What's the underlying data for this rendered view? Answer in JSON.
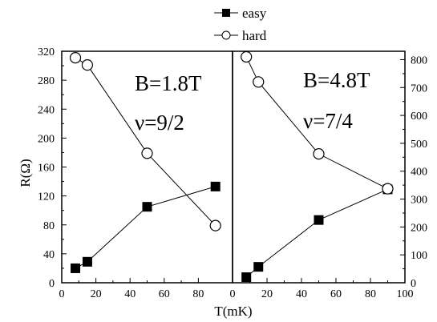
{
  "chart_data": {
    "type": "scatter",
    "legend": {
      "placement": "top-center",
      "entries": [
        {
          "marker": "filled-square",
          "label": "easy"
        },
        {
          "marker": "open-circle",
          "label": "hard"
        }
      ]
    },
    "xlabel": "T(mK)",
    "grid": false,
    "panels": [
      {
        "name": "left",
        "ylabel": "R(Ω)",
        "xlim": [
          0,
          100
        ],
        "ylim": [
          0,
          320
        ],
        "x_ticks": [
          0,
          20,
          40,
          60,
          80
        ],
        "y_ticks": [
          0,
          40,
          80,
          120,
          160,
          200,
          240,
          280,
          320
        ],
        "annotation_lines": [
          "B=1.8T",
          "ν=9/2"
        ],
        "series": [
          {
            "name": "easy",
            "marker": "filled-square",
            "x": [
              8,
              15,
              50,
              90
            ],
            "y": [
              20,
              29,
              105,
              133
            ]
          },
          {
            "name": "hard",
            "marker": "open-circle",
            "x": [
              8,
              15,
              50,
              90
            ],
            "y": [
              311,
              301,
              179,
              79
            ]
          }
        ]
      },
      {
        "name": "right",
        "xlim": [
          0,
          100
        ],
        "ylim": [
          0,
          830
        ],
        "x_ticks": [
          0,
          20,
          40,
          60,
          80,
          100
        ],
        "y_ticks": [
          0,
          100,
          200,
          300,
          400,
          500,
          600,
          700,
          800
        ],
        "annotation_lines": [
          "B=4.8T",
          "ν=7/4"
        ],
        "series": [
          {
            "name": "easy",
            "marker": "filled-square",
            "x": [
              8,
              15,
              50,
              90
            ],
            "y": [
              20,
              57,
              225,
              335
            ]
          },
          {
            "name": "hard",
            "marker": "open-circle",
            "x": [
              8,
              15,
              50,
              90
            ],
            "y": [
              810,
              720,
              462,
              337
            ]
          }
        ]
      }
    ]
  }
}
